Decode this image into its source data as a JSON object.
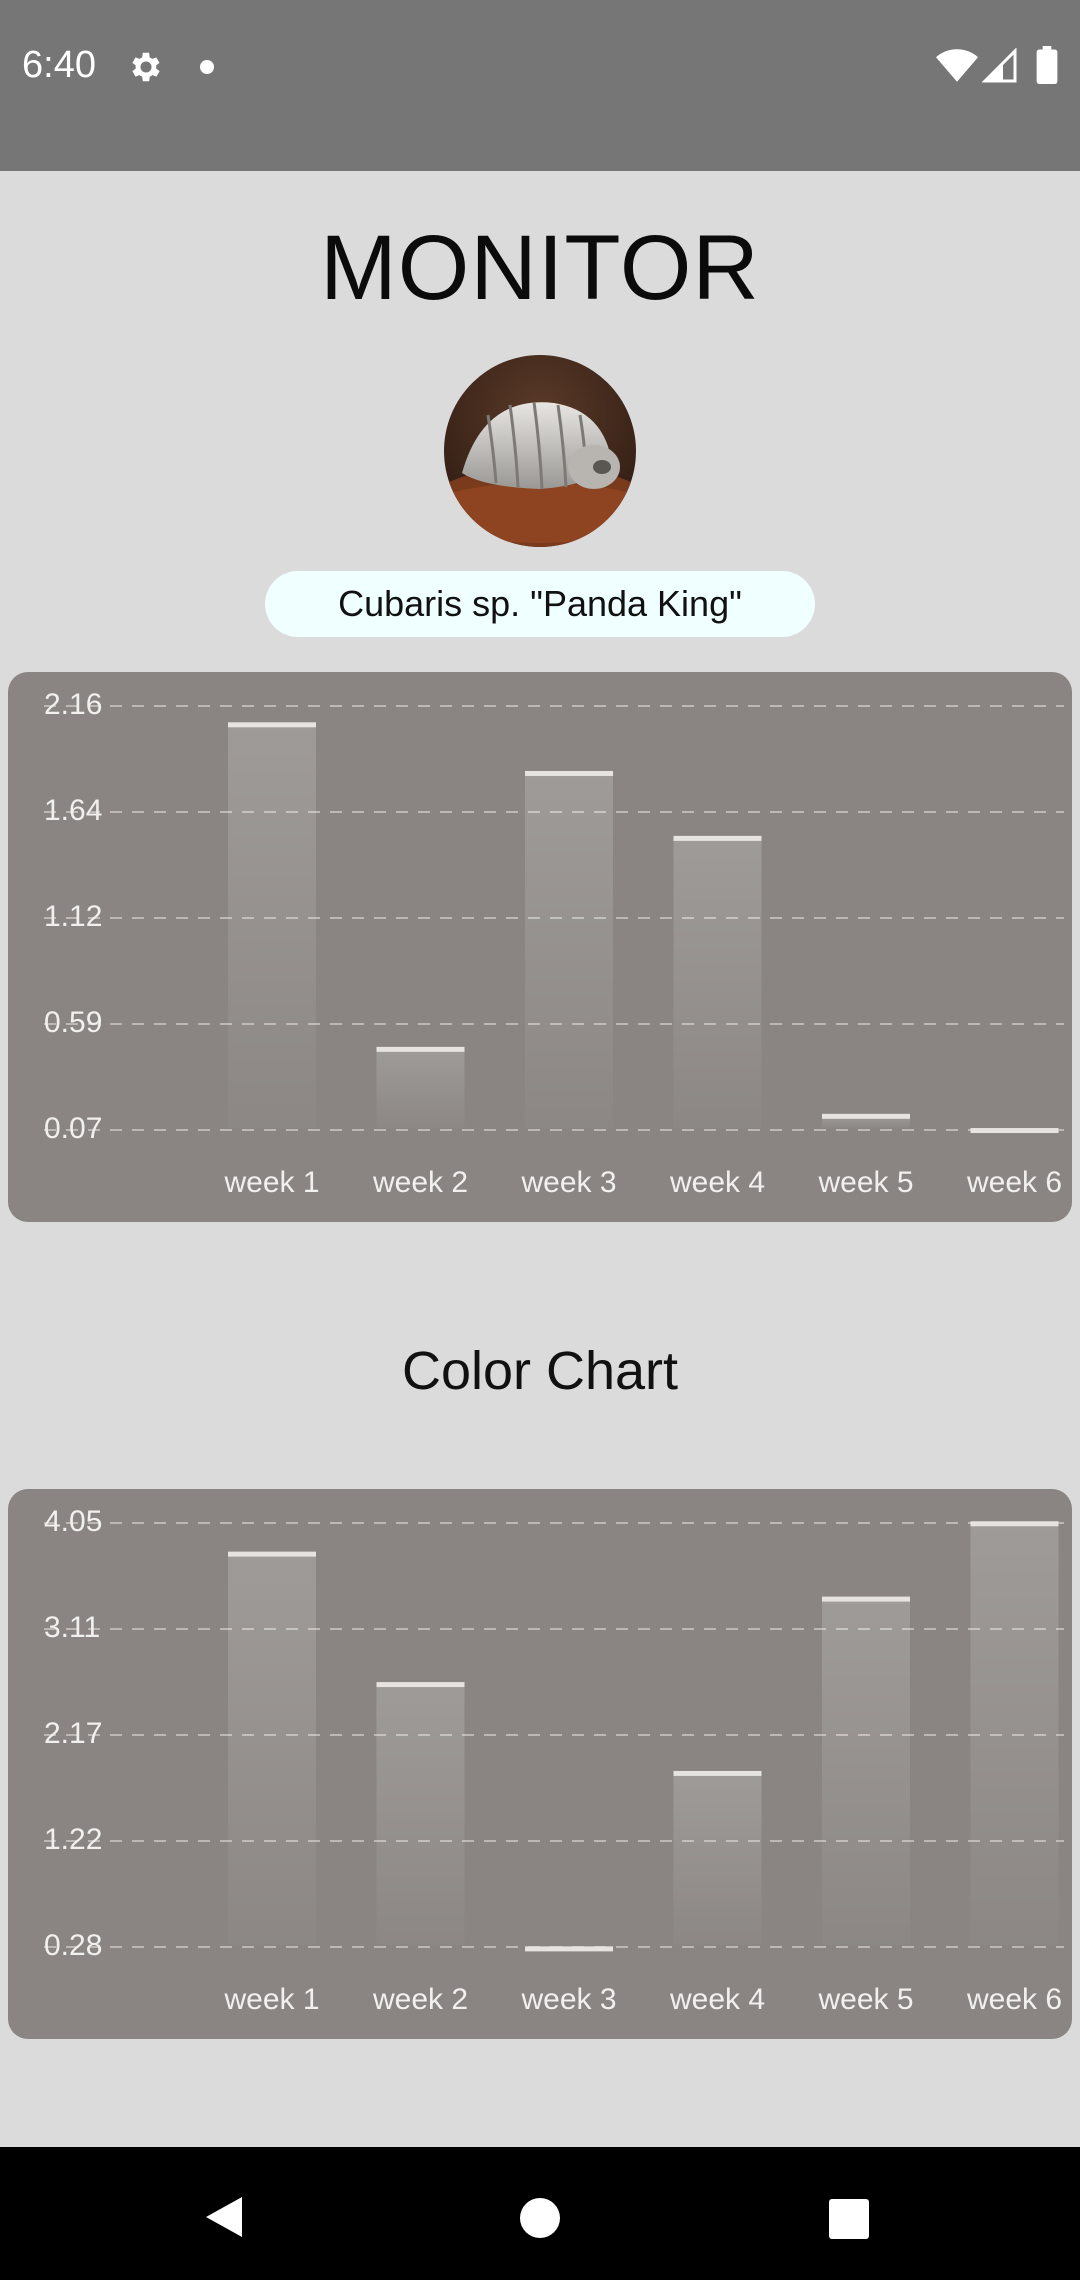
{
  "status_bar": {
    "time": "6:40",
    "icons": [
      "gear-icon",
      "notification-dot-icon",
      "wifi-icon",
      "cell-signal-icon",
      "battery-icon"
    ]
  },
  "header": {
    "title": "MONITOR"
  },
  "specimen": {
    "name": "Cubaris sp. \"Panda King\"",
    "avatar_icon": "isopod-photo"
  },
  "colors": {
    "background": "#dcdbdc",
    "status_bar": "#767676",
    "chart_card": "#8a8582",
    "pill": "#f0ffff",
    "bar_line": "#e6e3e0"
  },
  "color_chart": {
    "title": "Color Chart"
  },
  "chart_data": [
    {
      "type": "bar",
      "categories": [
        "week 1",
        "week 2",
        "week 3",
        "week 4",
        "week 5",
        "week 6"
      ],
      "values": [
        2.06,
        0.46,
        1.82,
        1.5,
        0.13,
        0.06
      ],
      "yticks": [
        "2.16",
        "1.64",
        "1.12",
        "0.59",
        "0.07"
      ],
      "ylim": [
        0.07,
        2.16
      ],
      "grid": true,
      "title": "",
      "xlabel": "",
      "ylabel": ""
    },
    {
      "type": "bar",
      "categories": [
        "week 1",
        "week 2",
        "week 3",
        "week 4",
        "week 5",
        "week 6"
      ],
      "values": [
        3.76,
        2.6,
        0.25,
        1.81,
        3.36,
        4.03
      ],
      "yticks": [
        "4.05",
        "3.11",
        "2.17",
        "1.22",
        "0.28"
      ],
      "ylim": [
        0.28,
        4.05
      ],
      "grid": true,
      "title": "",
      "xlabel": "",
      "ylabel": ""
    }
  ],
  "nav_bar": {
    "buttons": [
      "back-icon",
      "home-icon",
      "recents-icon"
    ]
  }
}
